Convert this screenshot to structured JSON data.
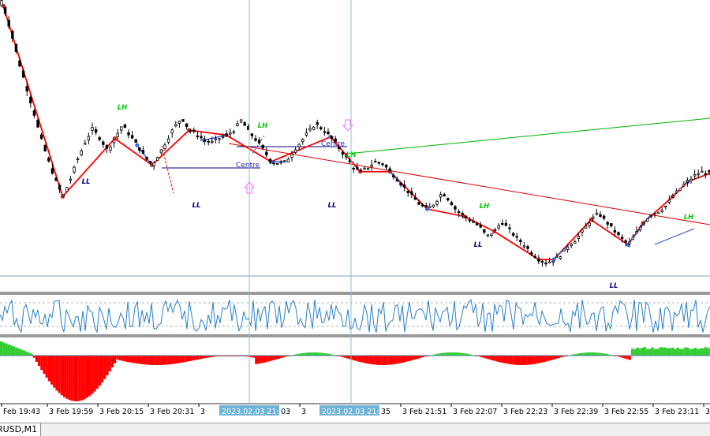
{
  "chart_data": {
    "type": "candlestick",
    "symbol_tab": "RUSD,M1",
    "time_labels": [
      "Feb 19:43",
      "3 Feb 19:59",
      "3 Feb 20:15",
      "3 Feb 20:31",
      "3",
      "3",
      "3 Feb 21:51",
      "3 Feb 22:07",
      "3 Feb 22:23",
      "3 Feb 22:39",
      "3 Feb 22:55",
      "3 Feb 23:11",
      "3"
    ],
    "crosshair_labels": [
      "2023.02.03 21:03",
      "2023.02.03 21:35"
    ],
    "crosshair_label_tails": [
      "03",
      "35"
    ],
    "close_path": [
      1000,
      970,
      935,
      905,
      875,
      842,
      815,
      790,
      770,
      790,
      815,
      835,
      852,
      840,
      826,
      840,
      856,
      844,
      832,
      818,
      808,
      822,
      838,
      854,
      865,
      850,
      845,
      838,
      835,
      840,
      844,
      850,
      862,
      848,
      838,
      826,
      812,
      810,
      812,
      825,
      836,
      848,
      858,
      850,
      842,
      830,
      818,
      806,
      800,
      805,
      812,
      810,
      800,
      790,
      780,
      770,
      760,
      755,
      762,
      775,
      765,
      752,
      746,
      740,
      734,
      722,
      728,
      740,
      730,
      720,
      712,
      702,
      694,
      690,
      694,
      700,
      712,
      718,
      730,
      742,
      750,
      740,
      730,
      720,
      712,
      725,
      738,
      748,
      752,
      758,
      770,
      780,
      788,
      796,
      800,
      798
    ],
    "pivot_labels": [
      {
        "text": "LL",
        "kind": "low"
      },
      {
        "text": "LH",
        "kind": "high"
      },
      {
        "text": "LL",
        "kind": "low"
      },
      {
        "text": "LH",
        "kind": "high"
      },
      {
        "text": "LL",
        "kind": "low"
      },
      {
        "text": "LH",
        "kind": "high"
      },
      {
        "text": "LH",
        "kind": "high"
      },
      {
        "text": "LL",
        "kind": "low"
      },
      {
        "text": "LL",
        "kind": "low"
      },
      {
        "text": "LH",
        "kind": "high"
      }
    ],
    "centre_labels": [
      "Centre",
      "Centre"
    ],
    "oscillator": {
      "type": "line",
      "color": "#2b7fc7"
    },
    "histogram": {
      "type": "bar",
      "colors": {
        "up": "#32cd32",
        "down": "#ff0000"
      }
    },
    "colors": {
      "zigzag": "#ff0000",
      "trend_up": "#00b000",
      "trend_down": "#e00000",
      "crosshair": "#87bfd8",
      "low_label": "#00007a",
      "high_label": "#00cc00",
      "arrow": "#ff66ff"
    }
  }
}
